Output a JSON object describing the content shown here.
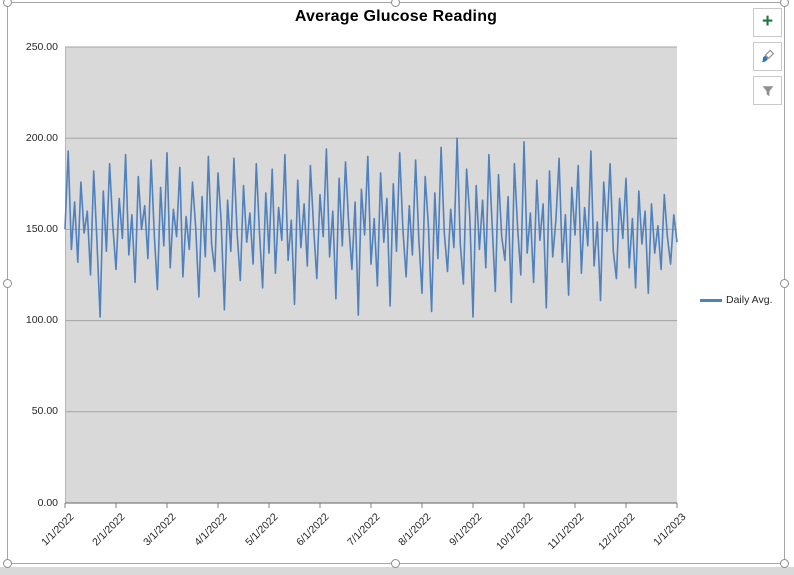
{
  "chart": {
    "selected": true,
    "frame_border_color": "#a6a6a6",
    "background": "#ffffff"
  },
  "toolbar": {
    "buttons": [
      {
        "id": "chart-elements",
        "glyph": "+"
      },
      {
        "id": "chart-styles"
      },
      {
        "id": "chart-filters"
      }
    ]
  },
  "chart_data": {
    "type": "line",
    "title": "Average Glucose Reading",
    "xlabel": "",
    "ylabel": "",
    "x_tick_labels": [
      "1/1/2022",
      "2/1/2022",
      "3/1/2022",
      "4/1/2022",
      "5/1/2022",
      "6/1/2022",
      "7/1/2022",
      "8/1/2022",
      "9/1/2022",
      "10/1/2022",
      "11/1/2022",
      "12/1/2022",
      "1/1/2023"
    ],
    "y_ticks": [
      0,
      50,
      100,
      150,
      200,
      250
    ],
    "y_tick_labels": [
      "0.00",
      "50.00",
      "100.00",
      "150.00",
      "200.00",
      "250.00"
    ],
    "ylim": [
      0,
      250
    ],
    "grid": true,
    "legend_position": "right",
    "plot_bg": "#d9d9d9",
    "grid_color": "#a3a3a3",
    "axis_color": "#7f7f7f",
    "series": [
      {
        "name": "Daily Avg.",
        "color": "#4f81bd",
        "values": [
          150,
          193,
          139,
          165,
          132,
          176,
          148,
          160,
          125,
          182,
          144,
          102,
          171,
          138,
          186,
          152,
          128,
          167,
          145,
          191,
          136,
          158,
          121,
          179,
          150,
          163,
          134,
          188,
          147,
          117,
          173,
          141,
          192,
          129,
          161,
          146,
          184,
          124,
          157,
          139,
          176,
          151,
          113,
          168,
          135,
          190,
          142,
          127,
          181,
          154,
          106,
          166,
          138,
          189,
          148,
          122,
          174,
          143,
          159,
          131,
          186,
          149,
          118,
          170,
          137,
          183,
          126,
          162,
          144,
          191,
          133,
          155,
          109,
          177,
          140,
          164,
          130,
          185,
          151,
          123,
          169,
          146,
          194,
          135,
          160,
          112,
          178,
          141,
          187,
          153,
          128,
          165,
          103,
          172,
          147,
          190,
          131,
          156,
          119,
          181,
          143,
          167,
          108,
          175,
          138,
          192,
          150,
          124,
          163,
          136,
          188,
          145,
          115,
          179,
          152,
          105,
          170,
          134,
          195,
          148,
          127,
          161,
          140,
          200,
          142,
          120,
          183,
          157,
          102,
          174,
          139,
          166,
          129,
          191,
          153,
          116,
          180,
          146,
          133,
          168,
          110,
          186,
          151,
          125,
          198,
          137,
          159,
          121,
          177,
          144,
          164,
          107,
          182,
          135,
          155,
          189,
          132,
          158,
          114,
          173,
          147,
          185,
          126,
          162,
          141,
          193,
          130,
          154,
          111,
          176,
          149,
          186,
          138,
          123,
          167,
          145,
          178,
          129,
          156,
          118,
          171,
          142,
          160,
          115,
          164,
          137,
          152,
          128,
          169,
          146,
          131,
          158,
          143
        ]
      }
    ]
  }
}
